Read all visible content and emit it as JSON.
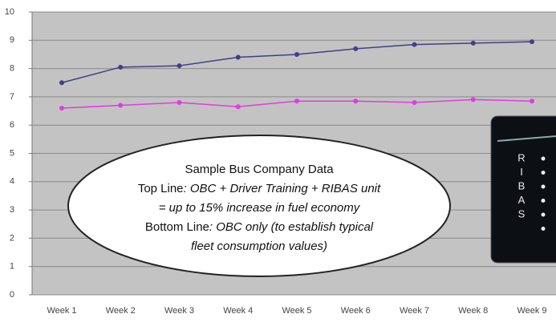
{
  "chart_data": {
    "type": "line",
    "categories": [
      "Week 1",
      "Week 2",
      "Week 3",
      "Week 4",
      "Week 5",
      "Week 6",
      "Week 7",
      "Week 8",
      "Week 9"
    ],
    "series": [
      {
        "color": "#3f3f8a",
        "values": [
          7.5,
          8.05,
          8.1,
          8.4,
          8.5,
          8.7,
          8.85,
          8.9,
          8.95
        ]
      },
      {
        "color": "#e03ce0",
        "values": [
          6.6,
          6.7,
          6.8,
          6.65,
          6.85,
          6.85,
          6.8,
          6.9,
          6.85
        ]
      }
    ],
    "ylim": [
      0,
      10
    ],
    "yticks": [
      0,
      1,
      2,
      3,
      4,
      5,
      6,
      7,
      8,
      9,
      10
    ],
    "grid": true,
    "annotation": {
      "title": "Sample Bus Company Data",
      "top_label": "Top Line",
      "top_text": ": OBC + Driver Training + RIBAS unit",
      "top_text2": "= up to 15% increase in fuel economy",
      "bottom_label": "Bottom Line",
      "bottom_text": ": OBC only (to establish typical",
      "bottom_text2": "fleet consumption values)"
    }
  },
  "device": {
    "letters": [
      "R",
      "I",
      "B",
      "A",
      "S"
    ]
  }
}
